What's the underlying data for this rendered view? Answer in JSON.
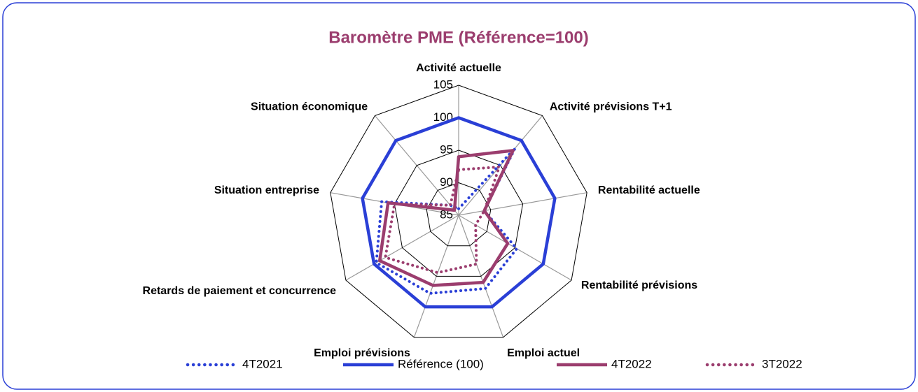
{
  "chart_data": {
    "type": "radar",
    "title": "Baromètre PME (Référence=100)",
    "categories": [
      "Activité actuelle",
      "Activité prévisions T+1",
      "Rentabilité actuelle",
      "Rentabilité prévisions",
      "Emploi actuel",
      "Emploi prévisions",
      "Retards de paiement et concurrence",
      "Situation entreprise",
      "Situation économique"
    ],
    "series": [
      {
        "name": "4T2021",
        "color": "#2a3fd6",
        "line_style": "dotted",
        "values": [
          86,
          98.5,
          89,
          95.3,
          97,
          97.8,
          99.6,
          97,
          87
        ]
      },
      {
        "name": "Référence (100)",
        "color": "#2a3fd6",
        "line_style": "solid",
        "values": [
          100,
          100,
          100,
          100,
          100,
          100,
          100,
          100,
          100
        ]
      },
      {
        "name": "4T2022",
        "color": "#9b3d6e",
        "line_style": "solid",
        "values": [
          94,
          98,
          89,
          93.7,
          96,
          96.5,
          99,
          96,
          86
        ]
      },
      {
        "name": "3T2022",
        "color": "#9b3d6e",
        "line_style": "dotted",
        "values": [
          92,
          94.7,
          89,
          88,
          93,
          94.4,
          98,
          95,
          87
        ]
      }
    ],
    "ylim": [
      85,
      105
    ],
    "yticks": [
      85,
      90,
      95,
      100,
      105
    ],
    "grid": true,
    "legend": "bottom"
  }
}
